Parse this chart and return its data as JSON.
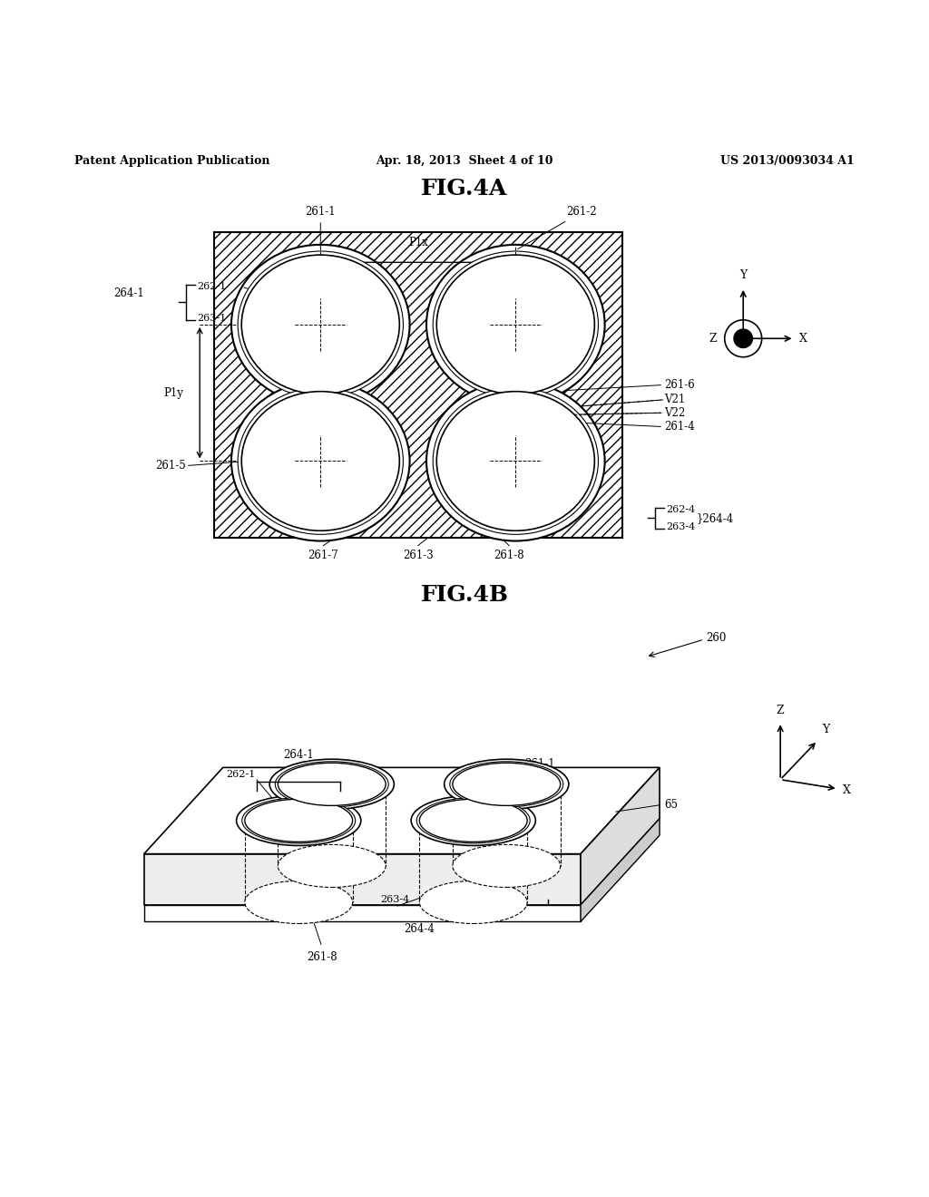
{
  "header_left": "Patent Application Publication",
  "header_center": "Apr. 18, 2013  Sheet 4 of 10",
  "header_right": "US 2013/0093034 A1",
  "fig4a_title": "FIG.4A",
  "fig4b_title": "FIG.4B",
  "bg_color": "#ffffff",
  "line_color": "#000000"
}
